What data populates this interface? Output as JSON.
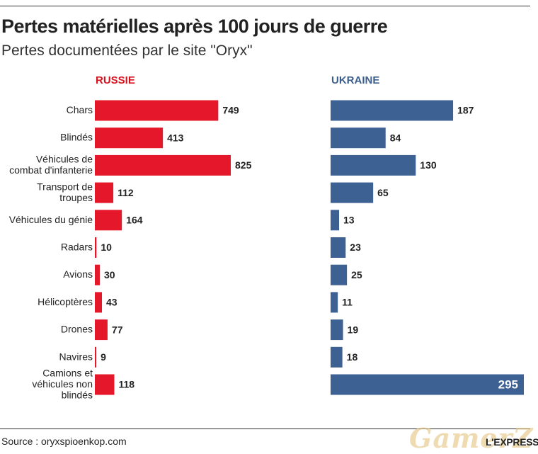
{
  "title": "Pertes matérielles après 100 jours de guerre",
  "subtitle": "Pertes documentées par le site \"Oryx\"",
  "source": "Source : oryxspioenkop.com",
  "publisher_logo": "L'EXPRESS",
  "watermark": "GamerZ",
  "colors": {
    "russia": "#e5172a",
    "ukraine": "#3e6194",
    "russia_header": "#d6121f",
    "ukraine_header": "#3b5e8c"
  },
  "chart_data": {
    "type": "bar",
    "orientation": "horizontal",
    "layout": "two panels side by side",
    "categories": [
      "Chars",
      "Blindés",
      "Véhicules de combat d'infanterie",
      "Transport de troupes",
      "Véhicules du génie",
      "Radars",
      "Avions",
      "Hélicoptères",
      "Drones",
      "Navires",
      "Camions et véhicules non blindés"
    ],
    "series": [
      {
        "name": "RUSSIE",
        "values": [
          749,
          413,
          825,
          112,
          164,
          10,
          30,
          43,
          77,
          9,
          118
        ]
      },
      {
        "name": "UKRAINE",
        "values": [
          187,
          84,
          130,
          65,
          13,
          23,
          25,
          11,
          19,
          18,
          295
        ]
      }
    ],
    "grid": false,
    "legend": "panel headers"
  }
}
